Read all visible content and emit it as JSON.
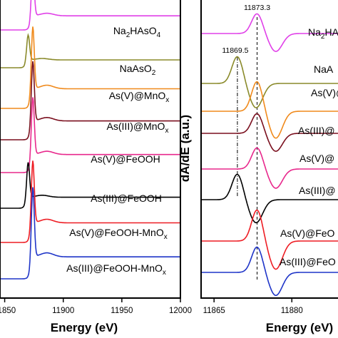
{
  "chart_data": [
    {
      "type": "line",
      "panel": "left",
      "xlabel": "Energy (eV)",
      "ylabel": "",
      "xlim": [
        11846,
        12000
      ],
      "xticks": [
        "11850",
        "11900",
        "11950",
        "12000"
      ],
      "grid": false,
      "series": [
        {
          "name": "Na2HAsO4",
          "color": "#e040e8"
        },
        {
          "name": "NaAsO2",
          "color": "#8a8a2a"
        },
        {
          "name": "As(V)@MnOx",
          "color": "#f08a1c"
        },
        {
          "name": "As(III)@MnOx",
          "color": "#7a0f1e"
        },
        {
          "name": "As(V)@FeOOH",
          "color": "#e8288c"
        },
        {
          "name": "As(III)@FeOOH",
          "color": "#000000"
        },
        {
          "name": "As(V)@FeOOH-MnOx",
          "color": "#ee1d24"
        },
        {
          "name": "As(III)@FeOOH-MnOx",
          "color": "#1f35c8"
        }
      ],
      "labels": [
        {
          "main": "Na",
          "s1": "2",
          "m2": "HAsO",
          "s2": "4",
          "m3": ""
        },
        {
          "main": "NaAsO",
          "s1": "2",
          "m2": "",
          "s2": "",
          "m3": ""
        },
        {
          "main": "As(V)@MnO",
          "s1": "x",
          "m2": "",
          "s2": "",
          "m3": ""
        },
        {
          "main": "As(III)@MnO",
          "s1": "x",
          "m2": "",
          "s2": "",
          "m3": ""
        },
        {
          "main": "As(V)@FeOOH",
          "s1": "",
          "m2": "",
          "s2": "",
          "m3": ""
        },
        {
          "main": "As(III)@FeOOH",
          "s1": "",
          "m2": "",
          "s2": "",
          "m3": ""
        },
        {
          "main": "As(V)@FeOOH-MnO",
          "s1": "x",
          "m2": "",
          "s2": "",
          "m3": ""
        },
        {
          "main": "As(III)@FeOOH-MnO",
          "s1": "x",
          "m2": "",
          "s2": "",
          "m3": ""
        }
      ]
    },
    {
      "type": "line",
      "panel": "right",
      "xlabel": "Energy (eV)",
      "ylabel": "dA/dE (a.u.)",
      "xlim": [
        11862.5,
        11890
      ],
      "xticks": [
        "11865",
        "11880"
      ],
      "grid": false,
      "reference_lines": [
        {
          "x": 11869.5,
          "label": "11869.5",
          "style": "dash-dot"
        },
        {
          "x": 11873.3,
          "label": "11873.3",
          "style": "dashed"
        }
      ],
      "series": [
        {
          "name": "Na2HAsO4",
          "color": "#e040e8"
        },
        {
          "name": "NaAsO2",
          "color": "#8a8a2a"
        },
        {
          "name": "As(V)@MnOx",
          "color": "#f08a1c"
        },
        {
          "name": "As(III)@MnOx",
          "color": "#7a0f1e"
        },
        {
          "name": "As(V)@FeOOH",
          "color": "#e8288c"
        },
        {
          "name": "As(III)@FeOOH",
          "color": "#000000"
        },
        {
          "name": "As(V)@FeOOH-MnOx",
          "color": "#ee1d24"
        },
        {
          "name": "As(III)@FeOOH-MnOx",
          "color": "#1f35c8"
        }
      ],
      "labels": [
        {
          "main": "Na",
          "s1": "2",
          "m2": "HA"
        },
        {
          "main": "NaA",
          "s1": "",
          "m2": ""
        },
        {
          "main": "As(V)@",
          "s1": "",
          "m2": ""
        },
        {
          "main": "As(III)@",
          "s1": "",
          "m2": ""
        },
        {
          "main": "As(V)@",
          "s1": "",
          "m2": ""
        },
        {
          "main": "As(III)@",
          "s1": "",
          "m2": ""
        },
        {
          "main": "As(V)@FeO",
          "s1": "",
          "m2": ""
        },
        {
          "main": "As(III)@FeO",
          "s1": "",
          "m2": ""
        }
      ]
    }
  ]
}
